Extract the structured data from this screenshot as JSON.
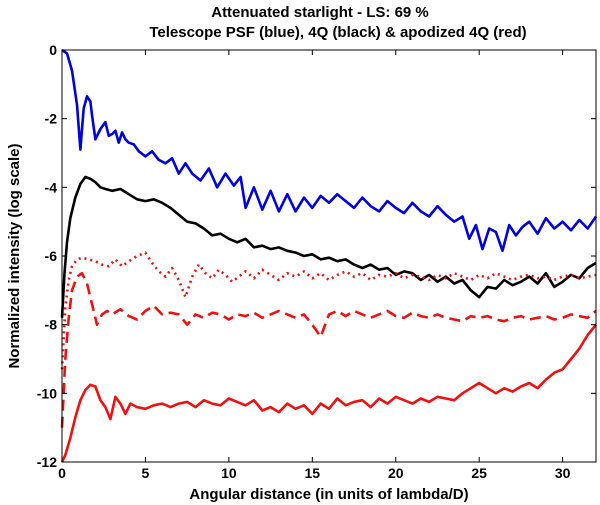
{
  "chart_data": {
    "type": "line",
    "title": "Attenuated starlight - LS: 69 %",
    "subtitle": "Telescope PSF (blue), 4Q (black) & apodized 4Q (red)",
    "xlabel": "Angular distance (in units of lambda/D)",
    "ylabel": "Normalized intensity (log scale)",
    "xlim": [
      0,
      32
    ],
    "ylim": [
      -12,
      0
    ],
    "xticks": [
      0,
      5,
      10,
      15,
      20,
      25,
      30
    ],
    "yticks": [
      0,
      -2,
      -4,
      -6,
      -8,
      -10,
      -12
    ],
    "grid": false,
    "series": [
      {
        "name": "Telescope PSF",
        "color": "#0000dd",
        "style": "solid",
        "x": [
          0,
          0.3,
          0.6,
          0.9,
          1.1,
          1.2,
          1.3,
          1.5,
          1.7,
          1.8,
          2.0,
          2.3,
          2.6,
          2.8,
          3.0,
          3.2,
          3.4,
          3.6,
          3.8,
          4.0,
          4.3,
          4.6,
          5.0,
          5.4,
          5.8,
          6.2,
          6.6,
          7.0,
          7.4,
          7.8,
          8.3,
          8.8,
          9.3,
          9.8,
          10.3,
          10.7,
          11.0,
          11.5,
          12.0,
          12.5,
          13.0,
          13.5,
          14.0,
          14.5,
          15.0,
          15.5,
          16.0,
          16.5,
          17.0,
          17.5,
          18.0,
          18.5,
          19.0,
          19.5,
          20.0,
          20.5,
          21.0,
          21.5,
          22.0,
          22.5,
          23.0,
          23.5,
          24.0,
          24.4,
          24.8,
          25.2,
          25.6,
          26.0,
          26.4,
          26.8,
          27.2,
          27.6,
          28.0,
          28.5,
          29.0,
          29.5,
          30.0,
          30.5,
          31.0,
          31.5,
          32.0
        ],
        "y": [
          0,
          -0.1,
          -0.6,
          -1.6,
          -2.9,
          -2.3,
          -1.7,
          -1.35,
          -1.5,
          -1.9,
          -2.6,
          -2.3,
          -2.1,
          -2.5,
          -2.45,
          -2.35,
          -2.7,
          -2.4,
          -2.6,
          -2.7,
          -2.75,
          -2.95,
          -3.1,
          -2.95,
          -3.2,
          -3.3,
          -3.15,
          -3.6,
          -3.3,
          -3.6,
          -3.8,
          -3.45,
          -4.0,
          -3.6,
          -3.95,
          -3.7,
          -4.6,
          -4.0,
          -4.65,
          -4.1,
          -4.7,
          -4.2,
          -4.7,
          -4.3,
          -4.6,
          -4.25,
          -4.45,
          -4.2,
          -4.4,
          -4.6,
          -4.3,
          -4.55,
          -4.7,
          -4.4,
          -4.6,
          -4.75,
          -4.45,
          -4.7,
          -4.85,
          -4.55,
          -4.8,
          -5.0,
          -4.85,
          -5.5,
          -5.1,
          -5.8,
          -5.2,
          -5.3,
          -5.85,
          -5.1,
          -5.4,
          -5.15,
          -5.0,
          -5.35,
          -4.9,
          -5.2,
          -5.0,
          -5.25,
          -4.95,
          -5.2,
          -4.85
        ]
      },
      {
        "name": "4Q",
        "color": "#000000",
        "style": "solid",
        "x": [
          0,
          0.15,
          0.3,
          0.5,
          0.8,
          1.1,
          1.4,
          1.7,
          2.0,
          2.3,
          2.6,
          3.0,
          3.5,
          4.0,
          4.5,
          5.0,
          5.5,
          6.0,
          6.5,
          7.0,
          7.5,
          8.0,
          8.5,
          9.0,
          9.5,
          10.0,
          10.5,
          11.0,
          11.5,
          12.0,
          12.5,
          13.0,
          13.5,
          14.0,
          14.5,
          15.0,
          15.5,
          16.0,
          16.5,
          17.0,
          17.5,
          18.0,
          18.5,
          19.0,
          19.5,
          20.0,
          20.5,
          21.0,
          21.5,
          22.0,
          22.5,
          23.0,
          23.5,
          24.0,
          24.5,
          25.0,
          25.5,
          26.0,
          26.5,
          27.0,
          27.5,
          28.0,
          28.5,
          29.0,
          29.5,
          30.0,
          30.5,
          31.0,
          31.5,
          32.0
        ],
        "y": [
          -7.8,
          -6.5,
          -5.6,
          -4.9,
          -4.3,
          -3.9,
          -3.7,
          -3.75,
          -3.85,
          -4.0,
          -4.05,
          -4.1,
          -4.05,
          -4.2,
          -4.35,
          -4.4,
          -4.35,
          -4.45,
          -4.6,
          -4.8,
          -5.0,
          -5.05,
          -5.2,
          -5.4,
          -5.35,
          -5.5,
          -5.6,
          -5.5,
          -5.75,
          -5.7,
          -5.8,
          -5.75,
          -5.85,
          -5.9,
          -6.0,
          -5.95,
          -6.1,
          -6.05,
          -6.15,
          -6.1,
          -6.25,
          -6.35,
          -6.25,
          -6.4,
          -6.35,
          -6.55,
          -6.45,
          -6.5,
          -6.7,
          -6.55,
          -6.75,
          -6.6,
          -6.8,
          -6.7,
          -7.0,
          -7.2,
          -6.9,
          -6.95,
          -6.7,
          -6.85,
          -6.75,
          -6.6,
          -6.8,
          -6.5,
          -6.9,
          -6.75,
          -6.55,
          -6.65,
          -6.35,
          -6.2
        ]
      },
      {
        "name": "Apodized 4Q (dotted)",
        "color": "#ee1111",
        "style": "dotted",
        "x": [
          0,
          0.2,
          0.4,
          0.6,
          0.9,
          1.2,
          1.6,
          2.0,
          2.4,
          2.8,
          3.2,
          3.6,
          4.0,
          4.5,
          5.0,
          5.4,
          5.8,
          6.2,
          6.6,
          7.0,
          7.4,
          7.8,
          8.2,
          8.6,
          9.0,
          9.4,
          9.8,
          10.2,
          10.6,
          11.0,
          11.5,
          12.0,
          12.5,
          13.0,
          13.5,
          14.0,
          14.5,
          15.0,
          15.5,
          16.0,
          16.5,
          17.0,
          17.5,
          18.0,
          18.5,
          19.0,
          19.5,
          20.0,
          20.5,
          21.0,
          21.5,
          22.0,
          22.5,
          23.0,
          23.5,
          24.0,
          24.5,
          25.0,
          25.5,
          26.0,
          26.5,
          27.0,
          27.5,
          28.0,
          28.5,
          29.0,
          29.5,
          30.0,
          30.5,
          31.0,
          31.5,
          32.0
        ],
        "y": [
          -9.3,
          -7.5,
          -6.7,
          -6.3,
          -6.1,
          -6.05,
          -6.1,
          -6.15,
          -6.25,
          -6.3,
          -6.1,
          -6.3,
          -6.15,
          -6.0,
          -5.9,
          -6.2,
          -6.45,
          -6.6,
          -6.35,
          -6.7,
          -7.2,
          -6.6,
          -6.25,
          -6.5,
          -6.65,
          -6.4,
          -6.55,
          -6.75,
          -6.6,
          -6.45,
          -6.65,
          -6.4,
          -6.55,
          -6.7,
          -6.5,
          -6.6,
          -6.45,
          -6.65,
          -6.5,
          -6.7,
          -6.55,
          -6.45,
          -6.6,
          -6.5,
          -6.7,
          -6.55,
          -6.6,
          -6.5,
          -6.65,
          -6.55,
          -6.6,
          -6.7,
          -6.55,
          -6.65,
          -6.5,
          -6.6,
          -6.7,
          -6.55,
          -6.65,
          -6.5,
          -6.6,
          -6.7,
          -6.6,
          -6.55,
          -6.65,
          -6.6,
          -6.7,
          -6.6,
          -6.55,
          -6.65,
          -6.6,
          -6.55
        ]
      },
      {
        "name": "Apodized 4Q (dashed)",
        "color": "#ee1111",
        "style": "dashed",
        "x": [
          0,
          0.2,
          0.4,
          0.6,
          0.9,
          1.2,
          1.5,
          1.8,
          2.1,
          2.4,
          2.7,
          3.0,
          3.5,
          4.0,
          4.5,
          5.0,
          5.5,
          6.0,
          6.5,
          7.0,
          7.5,
          8.0,
          8.5,
          9.0,
          9.5,
          10.0,
          10.5,
          11.0,
          11.5,
          12.0,
          12.5,
          13.0,
          13.5,
          14.0,
          14.5,
          15.0,
          15.5,
          16.0,
          16.5,
          17.0,
          17.5,
          18.0,
          18.5,
          19.0,
          19.5,
          20.0,
          20.5,
          21.0,
          21.5,
          22.0,
          22.5,
          23.0,
          23.5,
          24.0,
          24.5,
          25.0,
          25.5,
          26.0,
          26.5,
          27.0,
          27.5,
          28.0,
          28.5,
          29.0,
          29.5,
          30.0,
          30.5,
          31.0,
          31.5,
          32.0
        ],
        "y": [
          -11.0,
          -9.0,
          -7.8,
          -7.0,
          -6.6,
          -6.5,
          -6.8,
          -7.4,
          -8.0,
          -7.7,
          -7.6,
          -7.7,
          -7.55,
          -7.75,
          -7.85,
          -7.6,
          -7.45,
          -7.7,
          -7.65,
          -7.7,
          -8.0,
          -7.7,
          -7.8,
          -7.65,
          -7.7,
          -7.85,
          -7.7,
          -7.75,
          -7.65,
          -7.8,
          -7.7,
          -7.6,
          -7.7,
          -7.8,
          -7.7,
          -8.0,
          -8.35,
          -7.7,
          -7.6,
          -7.75,
          -7.6,
          -7.7,
          -7.8,
          -7.7,
          -7.6,
          -7.75,
          -7.8,
          -7.65,
          -7.75,
          -7.8,
          -7.7,
          -7.8,
          -7.85,
          -7.9,
          -7.75,
          -7.8,
          -7.75,
          -7.85,
          -7.9,
          -7.8,
          -7.75,
          -7.85,
          -7.8,
          -7.75,
          -7.85,
          -7.8,
          -7.7,
          -7.75,
          -7.8,
          -7.6
        ]
      },
      {
        "name": "Apodized 4Q (solid)",
        "color": "#ee1111",
        "style": "solid",
        "x": [
          0,
          0.2,
          0.5,
          0.8,
          1.1,
          1.4,
          1.7,
          2.0,
          2.3,
          2.6,
          2.9,
          3.2,
          3.5,
          3.8,
          4.1,
          4.5,
          5.0,
          5.5,
          6.0,
          6.5,
          7.0,
          7.5,
          8.0,
          8.5,
          9.0,
          9.5,
          10.0,
          10.5,
          11.0,
          11.5,
          12.0,
          12.5,
          13.0,
          13.5,
          14.0,
          14.5,
          15.0,
          15.5,
          16.0,
          16.5,
          17.0,
          17.5,
          18.0,
          18.5,
          19.0,
          19.5,
          20.0,
          20.5,
          21.0,
          21.5,
          22.0,
          22.5,
          23.0,
          23.5,
          24.0,
          24.5,
          25.0,
          25.5,
          26.0,
          26.5,
          27.0,
          27.5,
          28.0,
          28.5,
          29.0,
          29.5,
          30.0,
          30.5,
          31.0,
          31.5,
          32.0
        ],
        "y": [
          -12.0,
          -11.8,
          -11.3,
          -10.7,
          -10.2,
          -9.9,
          -9.75,
          -9.8,
          -10.2,
          -10.4,
          -10.75,
          -10.1,
          -10.3,
          -10.6,
          -10.3,
          -10.4,
          -10.45,
          -10.35,
          -10.3,
          -10.4,
          -10.3,
          -10.25,
          -10.4,
          -10.2,
          -10.3,
          -10.35,
          -10.15,
          -10.25,
          -10.35,
          -10.2,
          -10.5,
          -10.4,
          -10.55,
          -10.3,
          -10.45,
          -10.35,
          -10.6,
          -10.3,
          -10.45,
          -10.15,
          -10.35,
          -10.25,
          -10.2,
          -10.4,
          -10.15,
          -10.3,
          -10.1,
          -10.2,
          -10.3,
          -10.15,
          -10.25,
          -10.1,
          -10.15,
          -10.2,
          -10.0,
          -9.85,
          -9.7,
          -9.85,
          -10.0,
          -9.85,
          -9.95,
          -9.8,
          -9.7,
          -9.85,
          -9.6,
          -9.4,
          -9.3,
          -9.0,
          -8.7,
          -8.3,
          -8.0
        ]
      }
    ]
  }
}
